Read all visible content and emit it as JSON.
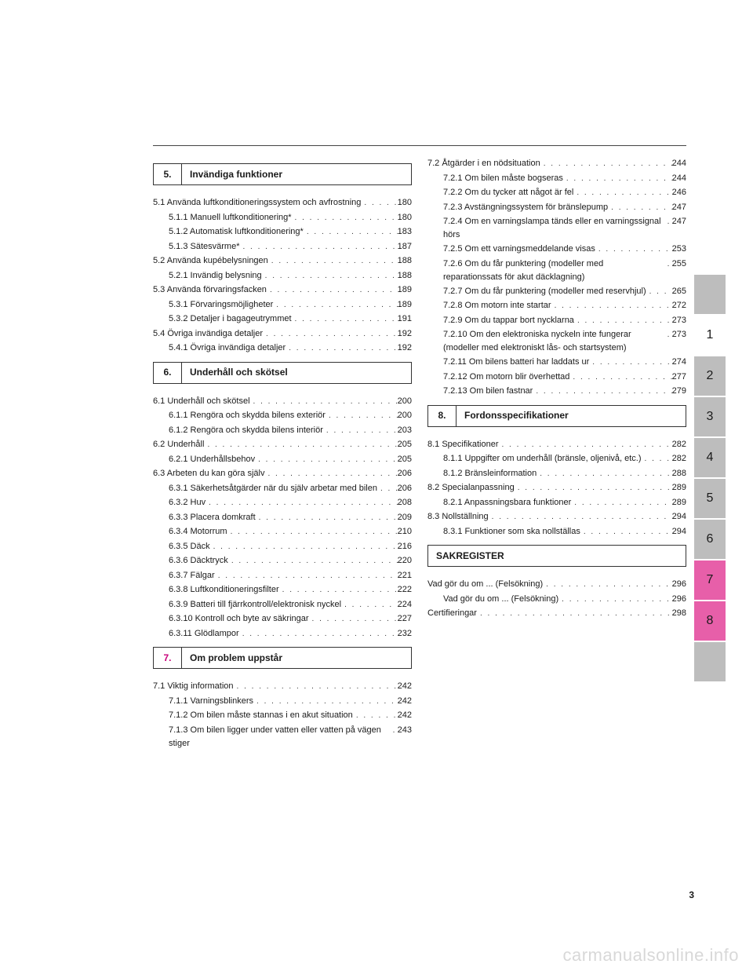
{
  "page_number": "3",
  "watermark": "carmanualsonline.info",
  "side_tabs": [
    {
      "label": "",
      "cls": "gray"
    },
    {
      "label": "1",
      "cls": "active1"
    },
    {
      "label": "2",
      "cls": "gray"
    },
    {
      "label": "3",
      "cls": "gray"
    },
    {
      "label": "4",
      "cls": "gray"
    },
    {
      "label": "5",
      "cls": "gray"
    },
    {
      "label": "6",
      "cls": "gray"
    },
    {
      "label": "7",
      "cls": "magenta"
    },
    {
      "label": "8",
      "cls": "magenta"
    },
    {
      "label": "",
      "cls": "gray"
    }
  ],
  "left_sections": [
    {
      "num": "5.",
      "title": "Invändiga funktioner",
      "style": "normal",
      "entries": [
        {
          "lvl": 1,
          "text": "5.1  Använda luftkonditioneringssystem och avfrostning",
          "page": "180"
        },
        {
          "lvl": 2,
          "text": "5.1.1  Manuell luftkonditionering*",
          "page": "180"
        },
        {
          "lvl": 2,
          "text": "5.1.2  Automatisk luftkonditionering*",
          "page": "183"
        },
        {
          "lvl": 2,
          "text": "5.1.3  Sätesvärme*",
          "page": "187"
        },
        {
          "lvl": 1,
          "text": "5.2  Använda kupébelysningen",
          "page": "188"
        },
        {
          "lvl": 2,
          "text": "5.2.1  Invändig belysning",
          "page": "188"
        },
        {
          "lvl": 1,
          "text": "5.3  Använda förvaringsfacken",
          "page": "189"
        },
        {
          "lvl": 2,
          "text": "5.3.1  Förvaringsmöjligheter",
          "page": "189"
        },
        {
          "lvl": 2,
          "text": "5.3.2  Detaljer i bagageutrymmet",
          "page": "191"
        },
        {
          "lvl": 1,
          "text": "5.4  Övriga invändiga detaljer",
          "page": "192"
        },
        {
          "lvl": 2,
          "text": "5.4.1  Övriga invändiga detaljer",
          "page": "192"
        }
      ]
    },
    {
      "num": "6.",
      "title": "Underhåll och skötsel",
      "style": "normal",
      "entries": [
        {
          "lvl": 1,
          "text": "6.1  Underhåll och skötsel",
          "page": "200"
        },
        {
          "lvl": 2,
          "text": "6.1.1  Rengöra och skydda bilens exteriör",
          "page": "200"
        },
        {
          "lvl": 2,
          "text": "6.1.2  Rengöra och skydda bilens interiör",
          "page": "203"
        },
        {
          "lvl": 1,
          "text": "6.2  Underhåll",
          "page": "205"
        },
        {
          "lvl": 2,
          "text": "6.2.1  Underhållsbehov",
          "page": "205"
        },
        {
          "lvl": 1,
          "text": "6.3  Arbeten du kan göra själv",
          "page": "206"
        },
        {
          "lvl": 2,
          "text": "6.3.1  Säkerhetsåtgärder när du själv arbetar med bilen",
          "page": "206"
        },
        {
          "lvl": 2,
          "text": "6.3.2  Huv",
          "page": "208"
        },
        {
          "lvl": 2,
          "text": "6.3.3  Placera domkraft",
          "page": "209"
        },
        {
          "lvl": 2,
          "text": "6.3.4  Motorrum",
          "page": "210"
        },
        {
          "lvl": 2,
          "text": "6.3.5  Däck",
          "page": "216"
        },
        {
          "lvl": 2,
          "text": "6.3.6  Däcktryck",
          "page": "220"
        },
        {
          "lvl": 2,
          "text": "6.3.7  Fälgar",
          "page": "221"
        },
        {
          "lvl": 2,
          "text": "6.3.8  Luftkonditioneringsfilter",
          "page": "222"
        },
        {
          "lvl": 2,
          "text": "6.3.9  Batteri till fjärrkontroll/elektronisk nyckel",
          "page": "224"
        },
        {
          "lvl": 2,
          "text": "6.3.10  Kontroll och byte av säkringar",
          "page": "227"
        },
        {
          "lvl": 2,
          "text": "6.3.11  Glödlampor",
          "page": "232"
        }
      ]
    },
    {
      "num": "7.",
      "title": "Om problem uppstår",
      "style": "magenta",
      "entries": [
        {
          "lvl": 1,
          "text": "7.1  Viktig information",
          "page": "242"
        },
        {
          "lvl": 2,
          "text": "7.1.1  Varningsblinkers",
          "page": "242"
        },
        {
          "lvl": 2,
          "text": "7.1.2  Om bilen måste stannas i en akut situation",
          "page": "242"
        },
        {
          "lvl": 2,
          "text": "7.1.3  Om bilen ligger under vatten eller vatten på vägen stiger",
          "page": "243"
        }
      ]
    }
  ],
  "right_sections": [
    {
      "num": "",
      "title": "",
      "style": "none",
      "entries": [
        {
          "lvl": 1,
          "text": "7.2  Åtgärder i en nödsituation",
          "page": "244"
        },
        {
          "lvl": 2,
          "text": "7.2.1  Om bilen måste bogseras",
          "page": "244"
        },
        {
          "lvl": 2,
          "text": "7.2.2  Om du tycker att något är fel",
          "page": "246"
        },
        {
          "lvl": 2,
          "text": "7.2.3  Avstängningssystem för bränslepump",
          "page": "247"
        },
        {
          "lvl": 2,
          "text": "7.2.4  Om en varningslampa tänds eller en varningssignal hörs",
          "page": "247"
        },
        {
          "lvl": 2,
          "text": "7.2.5  Om ett varningsmeddelande visas",
          "page": "253"
        },
        {
          "lvl": 2,
          "text": "7.2.6  Om du får punktering (modeller med reparationssats för akut däcklagning)",
          "page": "255"
        },
        {
          "lvl": 2,
          "text": "7.2.7  Om du får punktering (modeller med reservhjul)",
          "page": "265"
        },
        {
          "lvl": 2,
          "text": "7.2.8  Om motorn inte startar",
          "page": "272"
        },
        {
          "lvl": 2,
          "text": "7.2.9  Om du tappar bort nycklarna",
          "page": "273"
        },
        {
          "lvl": 2,
          "text": "7.2.10  Om den elektroniska nyckeln inte fungerar (modeller med elektroniskt lås- och startsystem)",
          "page": "273"
        },
        {
          "lvl": 2,
          "text": "7.2.11  Om bilens batteri har laddats ur",
          "page": "274"
        },
        {
          "lvl": 2,
          "text": "7.2.12  Om motorn blir överhettad",
          "page": "277"
        },
        {
          "lvl": 2,
          "text": "7.2.13  Om bilen fastnar",
          "page": "279"
        }
      ]
    },
    {
      "num": "8.",
      "title": "Fordonsspecifikationer",
      "style": "normal",
      "entries": [
        {
          "lvl": 1,
          "text": "8.1  Specifikationer",
          "page": "282"
        },
        {
          "lvl": 2,
          "text": "8.1.1  Uppgifter om underhåll (bränsle, oljenivå, etc.)",
          "page": "282"
        },
        {
          "lvl": 2,
          "text": "8.1.2  Bränsleinformation",
          "page": "288"
        },
        {
          "lvl": 1,
          "text": "8.2  Specialanpassning",
          "page": "289"
        },
        {
          "lvl": 2,
          "text": "8.2.1  Anpassningsbara funktioner",
          "page": "289"
        },
        {
          "lvl": 1,
          "text": "8.3  Nollställning",
          "page": "294"
        },
        {
          "lvl": 2,
          "text": "8.3.1  Funktioner som ska nollställas",
          "page": "294"
        }
      ]
    },
    {
      "num": "",
      "title": "SAKREGISTER",
      "style": "index",
      "entries": [
        {
          "lvl": 1,
          "text": "Vad gör du om ... (Felsökning)",
          "page": "296"
        },
        {
          "lvl": 2,
          "text": "Vad gör du om ... (Felsökning)",
          "page": "296"
        },
        {
          "lvl": 1,
          "text": "Certifieringar",
          "page": "298"
        }
      ]
    }
  ]
}
